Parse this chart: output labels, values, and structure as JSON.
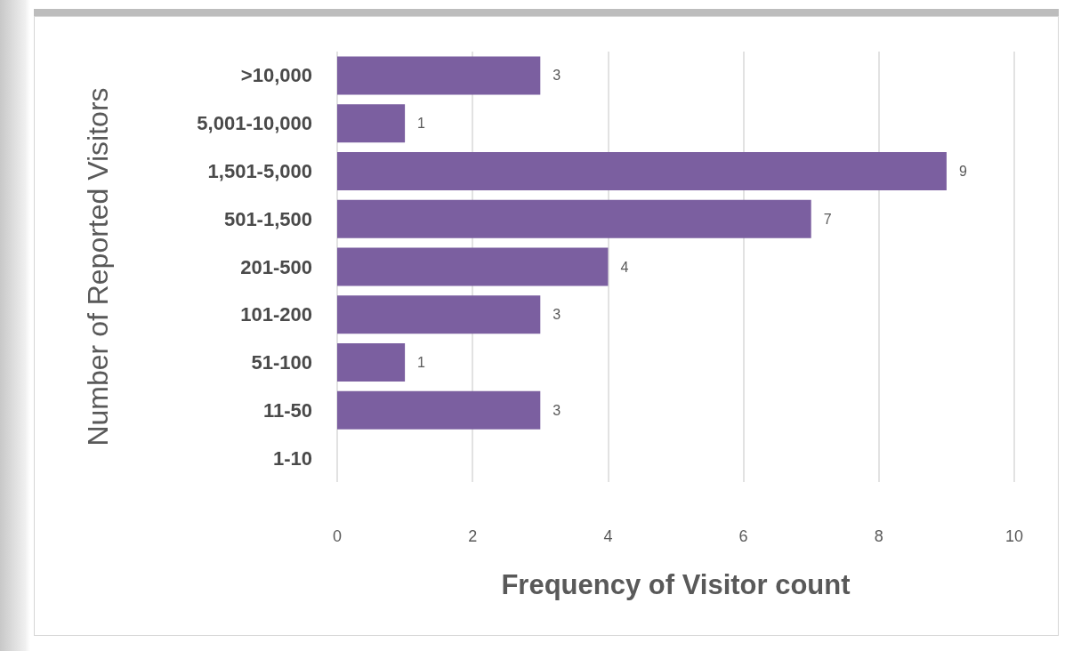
{
  "chart_data": {
    "type": "bar",
    "orientation": "horizontal",
    "categories": [
      ">10,000",
      "5,001-10,000",
      "1,501-5,000",
      "501-1,500",
      "201-500",
      "101-200",
      "51-100",
      "11-50",
      "1-10"
    ],
    "values": [
      3,
      1,
      9,
      7,
      4,
      3,
      1,
      3,
      0
    ],
    "value_labels": [
      "3",
      "1",
      "9",
      "7",
      "4",
      "3",
      "1",
      "3",
      null
    ],
    "color": "#7b5fa0",
    "xlabel": "Frequency of Visitor count",
    "ylabel": "Number of Reported Visitors",
    "xlim": [
      0,
      10
    ],
    "xticks": [
      0,
      2,
      4,
      6,
      8,
      10
    ],
    "grid": "x"
  }
}
